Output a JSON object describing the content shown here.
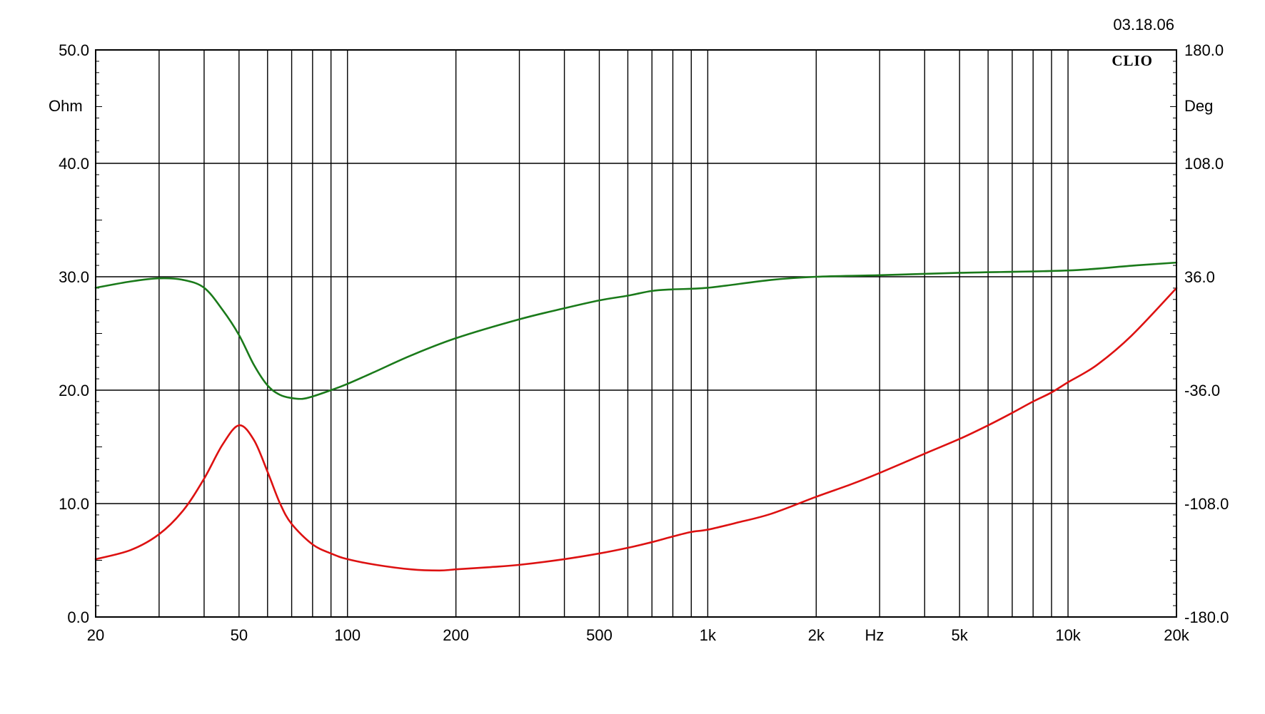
{
  "date_label": "03.18.06",
  "brand": "CLIO",
  "chart_data": {
    "type": "line",
    "x_scale": "log",
    "xlim": [
      20,
      20000
    ],
    "x_tick_values": [
      20,
      50,
      100,
      200,
      500,
      1000,
      2000,
      5000,
      10000,
      20000
    ],
    "x_tick_labels": [
      "20",
      "50",
      "100",
      "200",
      "500",
      "1k",
      "2k",
      "5k",
      "10k",
      "20k"
    ],
    "x_unit_label": "Hz",
    "y_left": {
      "unit": "Ohm",
      "lim": [
        0,
        50
      ],
      "ticks": [
        0,
        10,
        20,
        30,
        40,
        50
      ],
      "tick_labels": [
        "0.0",
        "10.0",
        "20.0",
        "30.0",
        "40.0",
        "50.0"
      ]
    },
    "y_right": {
      "unit": "Deg",
      "lim": [
        -180,
        180
      ],
      "ticks": [
        -180,
        -108,
        -36,
        36,
        108,
        180
      ],
      "tick_labels": [
        "-180.0",
        "-108.0",
        "-36.0",
        "36.0",
        "108.0",
        "180.0"
      ]
    },
    "grid": true,
    "series": [
      {
        "axis": "left",
        "color": "#dd1111",
        "points": [
          [
            20,
            5.1
          ],
          [
            25,
            5.9
          ],
          [
            30,
            7.3
          ],
          [
            35,
            9.4
          ],
          [
            40,
            12.2
          ],
          [
            45,
            15.2
          ],
          [
            50,
            16.9
          ],
          [
            55,
            15.6
          ],
          [
            60,
            12.8
          ],
          [
            65,
            10.0
          ],
          [
            70,
            8.2
          ],
          [
            80,
            6.4
          ],
          [
            90,
            5.6
          ],
          [
            100,
            5.1
          ],
          [
            120,
            4.6
          ],
          [
            150,
            4.2
          ],
          [
            180,
            4.1
          ],
          [
            200,
            4.2
          ],
          [
            250,
            4.4
          ],
          [
            300,
            4.6
          ],
          [
            400,
            5.1
          ],
          [
            500,
            5.6
          ],
          [
            600,
            6.1
          ],
          [
            700,
            6.6
          ],
          [
            800,
            7.1
          ],
          [
            900,
            7.5
          ],
          [
            1000,
            7.7
          ],
          [
            1200,
            8.3
          ],
          [
            1500,
            9.1
          ],
          [
            2000,
            10.6
          ],
          [
            2500,
            11.7
          ],
          [
            3000,
            12.7
          ],
          [
            4000,
            14.4
          ],
          [
            5000,
            15.7
          ],
          [
            6000,
            16.9
          ],
          [
            7000,
            18.0
          ],
          [
            8000,
            19.0
          ],
          [
            9000,
            19.8
          ],
          [
            10000,
            20.7
          ],
          [
            12000,
            22.2
          ],
          [
            15000,
            24.8
          ],
          [
            20000,
            29.0
          ]
        ]
      },
      {
        "axis": "right",
        "color": "#1a7a1a",
        "points": [
          [
            20,
            29.0
          ],
          [
            25,
            33.0
          ],
          [
            30,
            35.0
          ],
          [
            35,
            34.0
          ],
          [
            40,
            29.0
          ],
          [
            45,
            15.0
          ],
          [
            50,
            -1.0
          ],
          [
            55,
            -20.0
          ],
          [
            60,
            -33.0
          ],
          [
            65,
            -39.0
          ],
          [
            70,
            -41.0
          ],
          [
            75,
            -41.5
          ],
          [
            80,
            -40.0
          ],
          [
            90,
            -36.0
          ],
          [
            100,
            -32.0
          ],
          [
            120,
            -24.0
          ],
          [
            150,
            -14.0
          ],
          [
            200,
            -3.0
          ],
          [
            300,
            9.0
          ],
          [
            400,
            16.0
          ],
          [
            500,
            21.0
          ],
          [
            600,
            24.0
          ],
          [
            700,
            27.0
          ],
          [
            800,
            28.0
          ],
          [
            1000,
            29.0
          ],
          [
            1500,
            34.0
          ],
          [
            2000,
            36.0
          ],
          [
            3000,
            37.0
          ],
          [
            5000,
            38.5
          ],
          [
            10000,
            40.0
          ],
          [
            15000,
            43.0
          ],
          [
            20000,
            45.0
          ]
        ]
      }
    ]
  }
}
